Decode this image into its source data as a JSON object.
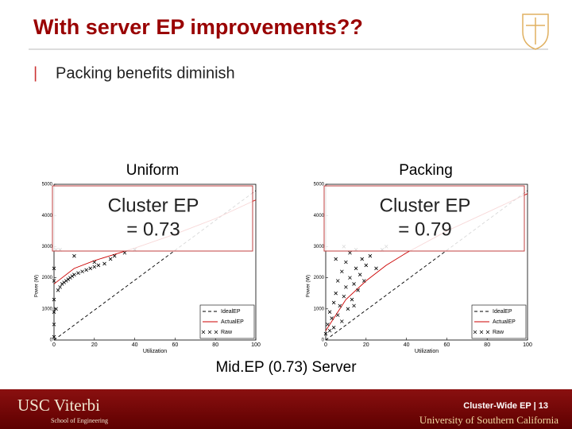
{
  "slide": {
    "title": "With server EP improvements??",
    "bullet_marker": "|",
    "bullet": "Packing benefits diminish",
    "caption": "Mid.EP (0.73) Server",
    "footer_page": "Cluster-Wide EP | 13",
    "logo_left": "USC Viterbi",
    "logo_left_sub": "School of Engineering",
    "logo_right": "University of Southern California"
  },
  "chart_data": [
    {
      "type": "scatter",
      "title": "Uniform",
      "annotation": [
        "Cluster EP",
        "= 0.73"
      ],
      "xlabel": "Utilization",
      "ylabel": "Power (W)",
      "xlim": [
        0,
        100
      ],
      "ylim": [
        0,
        5000
      ],
      "xticks": [
        0,
        20,
        40,
        60,
        80,
        100
      ],
      "yticks": [
        0,
        1000,
        2000,
        3000,
        4000,
        5000
      ],
      "legend": "lower right",
      "series": [
        {
          "name": "IdealEP",
          "color": "#000000",
          "style": "dashed",
          "x": [
            0,
            100
          ],
          "values": [
            0,
            4800
          ]
        },
        {
          "name": "ActualEP",
          "color": "#cc0000",
          "style": "solid",
          "x": [
            0,
            10,
            20,
            30,
            40,
            60,
            80,
            100
          ],
          "values": [
            1800,
            2300,
            2550,
            2750,
            2950,
            3400,
            3900,
            4500
          ]
        },
        {
          "name": "Raw",
          "color": "#000000",
          "style": "marker",
          "x": [
            0,
            0,
            0,
            0,
            0,
            0,
            1,
            1,
            2,
            3,
            4,
            5,
            6,
            7,
            8,
            9,
            10,
            12,
            14,
            16,
            18,
            20,
            22,
            25,
            28,
            30,
            35,
            40,
            3,
            10,
            20
          ],
          "values": [
            100,
            500,
            900,
            1300,
            1900,
            2300,
            2900,
            1000,
            1600,
            1700,
            1800,
            1850,
            1900,
            1950,
            2000,
            2050,
            2100,
            2150,
            2200,
            2250,
            2300,
            2350,
            2400,
            2450,
            2600,
            2700,
            2800,
            2900,
            2900,
            2700,
            2500
          ]
        }
      ]
    },
    {
      "type": "scatter",
      "title": "Packing",
      "annotation": [
        "Cluster EP",
        "= 0.79"
      ],
      "xlabel": "Utilization",
      "ylabel": "Power (W)",
      "xlim": [
        0,
        100
      ],
      "ylim": [
        0,
        5000
      ],
      "xticks": [
        0,
        20,
        40,
        60,
        80,
        100
      ],
      "yticks": [
        0,
        1000,
        2000,
        3000,
        4000,
        5000
      ],
      "legend": "lower right",
      "series": [
        {
          "name": "IdealEP",
          "color": "#000000",
          "style": "dashed",
          "x": [
            0,
            100
          ],
          "values": [
            0,
            4800
          ]
        },
        {
          "name": "ActualEP",
          "color": "#cc0000",
          "style": "solid",
          "x": [
            0,
            10,
            20,
            30,
            40,
            60,
            80,
            100
          ],
          "values": [
            300,
            1300,
            1900,
            2400,
            2800,
            3500,
            4100,
            4700
          ]
        },
        {
          "name": "Raw",
          "color": "#000000",
          "style": "marker",
          "x": [
            0,
            1,
            2,
            2,
            3,
            4,
            4,
            5,
            6,
            6,
            7,
            8,
            8,
            9,
            10,
            10,
            11,
            12,
            12,
            13,
            14,
            15,
            15,
            16,
            17,
            18,
            19,
            20,
            22,
            25,
            28,
            30,
            5,
            9,
            14
          ],
          "values": [
            200,
            500,
            300,
            900,
            700,
            1200,
            400,
            1500,
            800,
            1900,
            1100,
            2200,
            600,
            1400,
            1700,
            2500,
            1000,
            2000,
            2800,
            1300,
            1800,
            2300,
            2900,
            1600,
            2100,
            2600,
            1900,
            2400,
            2700,
            2300,
            2900,
            3000,
            2600,
            3000,
            1100
          ]
        }
      ]
    }
  ]
}
